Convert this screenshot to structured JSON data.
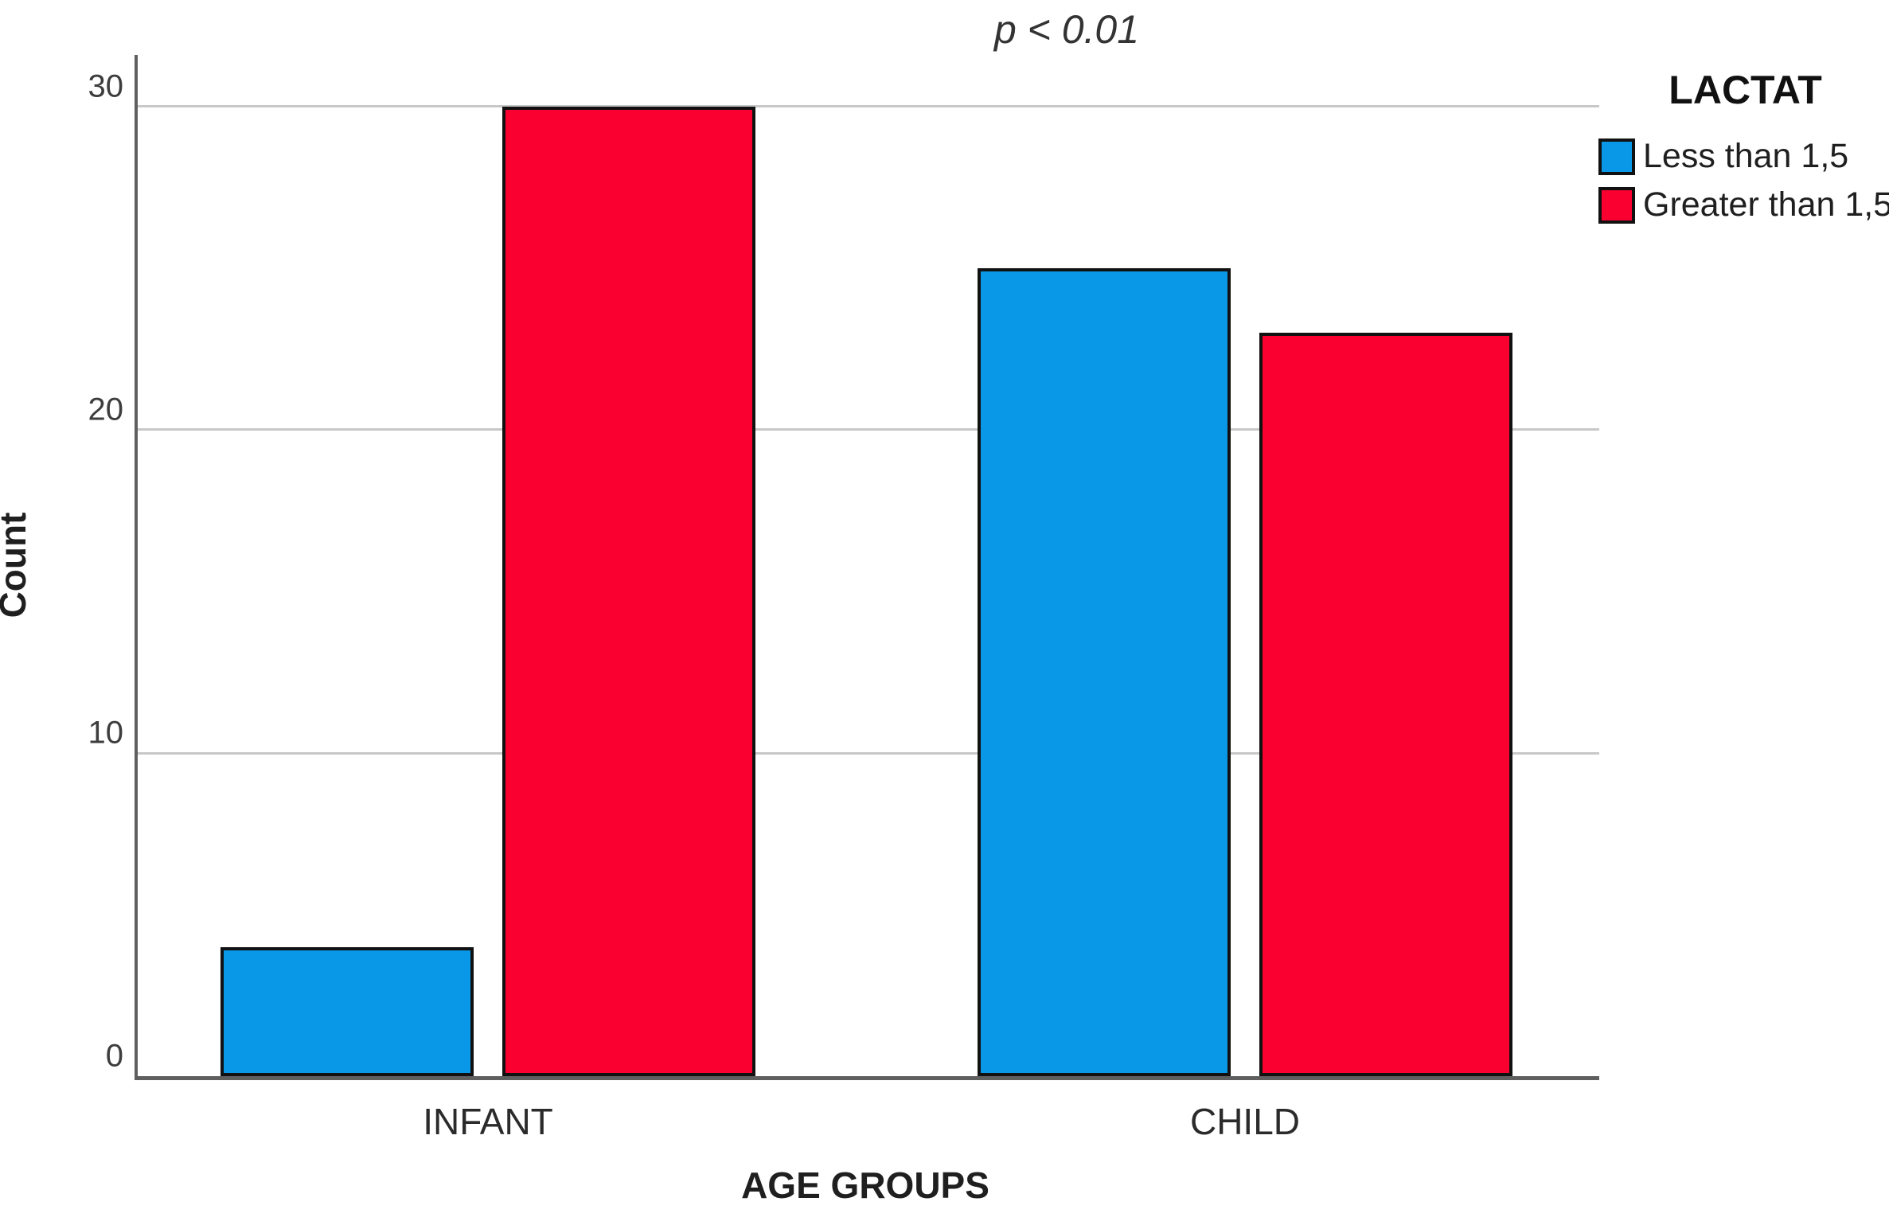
{
  "chart_data": {
    "type": "bar",
    "title": "p < 0.01",
    "xlabel": "AGE GROUPS",
    "ylabel": "Count",
    "categories": [
      "INFANT",
      "CHILD"
    ],
    "series": [
      {
        "name": "Less than 1,5",
        "color": "#0998E8",
        "values": [
          4,
          25
        ]
      },
      {
        "name": "Greater than 1,5",
        "color": "#FA0030",
        "values": [
          30,
          23
        ]
      }
    ],
    "legend_title": "LACTAT",
    "legend_position": "top-right",
    "ylim": [
      0,
      31.6
    ],
    "yticks": [
      0,
      10,
      20,
      30
    ],
    "grid": "horizontal-gridlines",
    "style_colors": {
      "axis": "#5f5f5f",
      "gridline": "#c8c8c8",
      "bar_border": "#111111",
      "blue_series": "#0998E8",
      "red_series": "#FA0030"
    }
  }
}
